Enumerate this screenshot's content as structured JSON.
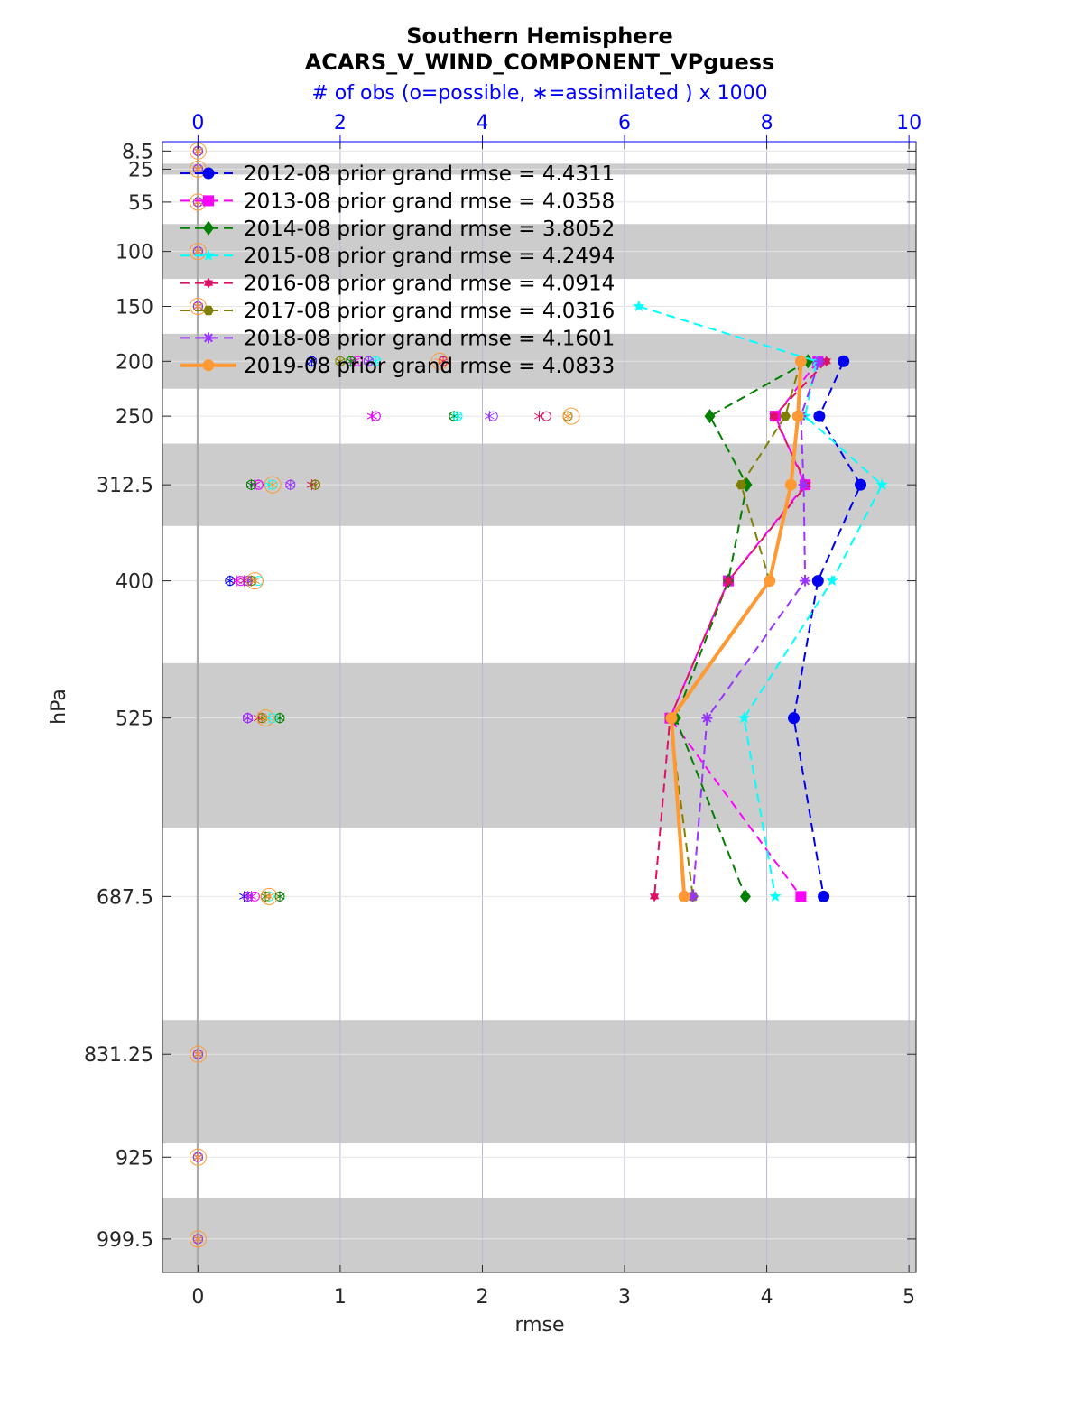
{
  "chart_data": {
    "type": "line",
    "title": "Southern Hemisphere",
    "subtitle": "ACARS_V_WIND_COMPONENT_VPguess",
    "top_axis_label": "# of obs (o=possible, ∗=assimilated ) x 1000",
    "xlabel": "rmse",
    "ylabel": "hPa",
    "xlim": [
      -0.25,
      5.05
    ],
    "xticks": [
      0,
      1,
      2,
      3,
      4,
      5
    ],
    "x2lim": [
      -0.5,
      10.1
    ],
    "x2ticks": [
      0,
      2,
      4,
      6,
      8,
      10
    ],
    "ylim": [
      0,
      1030
    ],
    "y_reversed": true,
    "grid": true,
    "legend_position": "top-left",
    "levels": [
      8.5,
      25,
      55,
      100,
      150,
      200,
      250,
      312.5,
      400,
      525,
      687.5,
      831.25,
      925,
      999.5
    ],
    "level_labels": [
      "8.5",
      "25",
      "55",
      "100",
      "150",
      "200",
      "250",
      "312.5",
      "400",
      "525",
      "687.5",
      "831.25",
      "925",
      "999.5"
    ],
    "level_bands": [
      [
        20,
        30
      ],
      [
        75,
        125
      ],
      [
        175,
        225
      ],
      [
        275,
        350
      ],
      [
        475,
        625
      ],
      [
        800,
        912.5
      ],
      [
        962.5,
        1030
      ]
    ],
    "rmse_levels": [
      150,
      200,
      250,
      312.5,
      400,
      525,
      687.5
    ],
    "series": [
      {
        "name": "2012-08 prior grand rmse = 4.4311",
        "color": "#0000ee",
        "marker": "circle",
        "style": "dashed",
        "rmse": [
          null,
          4.54,
          4.37,
          4.66,
          4.36,
          4.19,
          4.4
        ],
        "obs_possible": [
          0,
          1.6,
          2.5,
          0.85,
          0.45,
          0.7,
          0.7
        ],
        "obs_assimilated": [
          0,
          1.6,
          2.45,
          0.8,
          0.45,
          0.7,
          0.65
        ]
      },
      {
        "name": "2013-08 prior grand rmse = 4.0358",
        "color": "#ff00ff",
        "marker": "square",
        "style": "dashed",
        "rmse": [
          null,
          4.36,
          4.06,
          4.27,
          3.73,
          3.32,
          4.24
        ],
        "obs_possible": [
          0,
          2.25,
          2.5,
          0.85,
          0.6,
          0.7,
          0.8
        ],
        "obs_assimilated": [
          0,
          2.2,
          2.45,
          0.8,
          0.55,
          0.7,
          0.75
        ]
      },
      {
        "name": "2014-08 prior grand rmse = 3.8052",
        "color": "#008000",
        "marker": "diamond",
        "style": "dashed",
        "rmse": [
          null,
          4.29,
          3.6,
          3.86,
          3.73,
          3.36,
          3.85
        ],
        "obs_possible": [
          0,
          2.15,
          3.6,
          0.75,
          0.75,
          1.15,
          1.15
        ],
        "obs_assimilated": [
          0,
          2.15,
          3.6,
          0.75,
          0.75,
          1.15,
          1.15
        ]
      },
      {
        "name": "2015-08 prior grand rmse = 4.2494",
        "color": "#00ffff",
        "marker": "star",
        "style": "dashed",
        "rmse": [
          3.1,
          4.35,
          4.27,
          4.81,
          4.46,
          3.84,
          4.06
        ],
        "obs_possible": [
          0,
          2.5,
          3.65,
          1.05,
          0.85,
          1.05,
          1.0
        ],
        "obs_assimilated": [
          0,
          2.5,
          3.65,
          1.0,
          0.8,
          1.0,
          0.95
        ]
      },
      {
        "name": "2016-08 prior grand rmse = 4.0914",
        "color": "#dd1166",
        "marker": "hexagram",
        "style": "dashed",
        "rmse": [
          null,
          4.42,
          4.05,
          4.28,
          3.73,
          3.32,
          3.21
        ],
        "obs_possible": [
          0,
          3.45,
          4.9,
          1.65,
          0.7,
          0.9,
          0.7
        ],
        "obs_assimilated": [
          0,
          3.45,
          4.8,
          1.6,
          0.65,
          0.85,
          0.7
        ]
      },
      {
        "name": "2017-08 prior grand rmse = 4.0316",
        "color": "#808000",
        "marker": "hexagon",
        "style": "dashed",
        "rmse": [
          null,
          4.24,
          4.13,
          3.82,
          4.02,
          3.32,
          3.48
        ],
        "obs_possible": [
          0,
          2.0,
          5.2,
          1.65,
          0.75,
          0.9,
          0.95
        ],
        "obs_assimilated": [
          0,
          2.0,
          5.2,
          1.65,
          0.75,
          0.9,
          0.95
        ]
      },
      {
        "name": "2018-08 prior grand rmse = 4.1601",
        "color": "#9933ff",
        "marker": "asterisk",
        "style": "dashed",
        "rmse": [
          null,
          4.37,
          4.24,
          4.26,
          4.27,
          3.58,
          3.48
        ],
        "obs_possible": [
          0,
          2.4,
          4.15,
          1.3,
          0.7,
          0.7,
          0.7
        ],
        "obs_assimilated": [
          0,
          2.4,
          4.1,
          1.3,
          0.7,
          0.7,
          0.7
        ]
      },
      {
        "name": "2019-08 prior grand rmse = 4.0833",
        "color": "#ff9933",
        "marker": "circle",
        "style": "solid",
        "rmse": [
          null,
          4.24,
          4.22,
          4.17,
          4.02,
          3.33,
          3.42
        ],
        "obs_possible": [
          0,
          3.4,
          5.25,
          1.05,
          0.8,
          0.95,
          1.0
        ],
        "obs_assimilated": [
          0,
          3.4,
          5.2,
          1.05,
          0.8,
          0.95,
          1.0
        ]
      }
    ],
    "zero_obs_levels": [
      8.5,
      25,
      55,
      100,
      150,
      831.25,
      925,
      999.5
    ]
  }
}
